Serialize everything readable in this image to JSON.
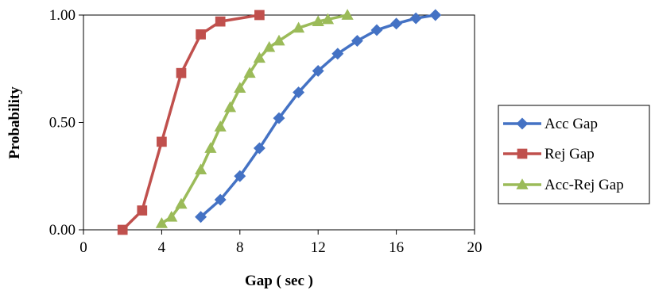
{
  "chart_data": {
    "type": "line",
    "xlabel": "Gap ( sec )",
    "ylabel": "Probability",
    "xlim": [
      0,
      20
    ],
    "ylim": [
      0,
      1
    ],
    "x_ticks": [
      0,
      4,
      8,
      12,
      16,
      20
    ],
    "x_tick_labels": [
      "0",
      "4",
      "8",
      "12",
      "16",
      "20"
    ],
    "y_ticks": [
      0,
      0.5,
      1
    ],
    "y_tick_labels": [
      "0.00",
      "0.50",
      "1.00"
    ],
    "grid": false,
    "legend_position": "right",
    "series": [
      {
        "name": "Acc Gap",
        "color": "#4472c4",
        "marker": "diamond",
        "x": [
          6,
          7,
          8,
          9,
          10,
          11,
          12,
          13,
          14,
          15,
          16,
          17,
          18
        ],
        "y": [
          0.06,
          0.14,
          0.25,
          0.38,
          0.52,
          0.64,
          0.74,
          0.82,
          0.88,
          0.93,
          0.96,
          0.985,
          1.0
        ]
      },
      {
        "name": "Rej Gap",
        "color": "#c0504d",
        "marker": "square",
        "x": [
          2,
          3,
          4,
          5,
          6,
          7,
          9
        ],
        "y": [
          0.0,
          0.09,
          0.41,
          0.73,
          0.91,
          0.97,
          1.0
        ]
      },
      {
        "name": "Acc-Rej Gap",
        "color": "#9bbb59",
        "marker": "triangle",
        "x": [
          4,
          4.5,
          5,
          6,
          6.5,
          7,
          7.5,
          8,
          8.5,
          9,
          9.5,
          10,
          11,
          12,
          12.5,
          13.5
        ],
        "y": [
          0.03,
          0.06,
          0.12,
          0.28,
          0.38,
          0.48,
          0.57,
          0.66,
          0.73,
          0.8,
          0.85,
          0.88,
          0.94,
          0.97,
          0.98,
          1.0
        ]
      }
    ]
  }
}
